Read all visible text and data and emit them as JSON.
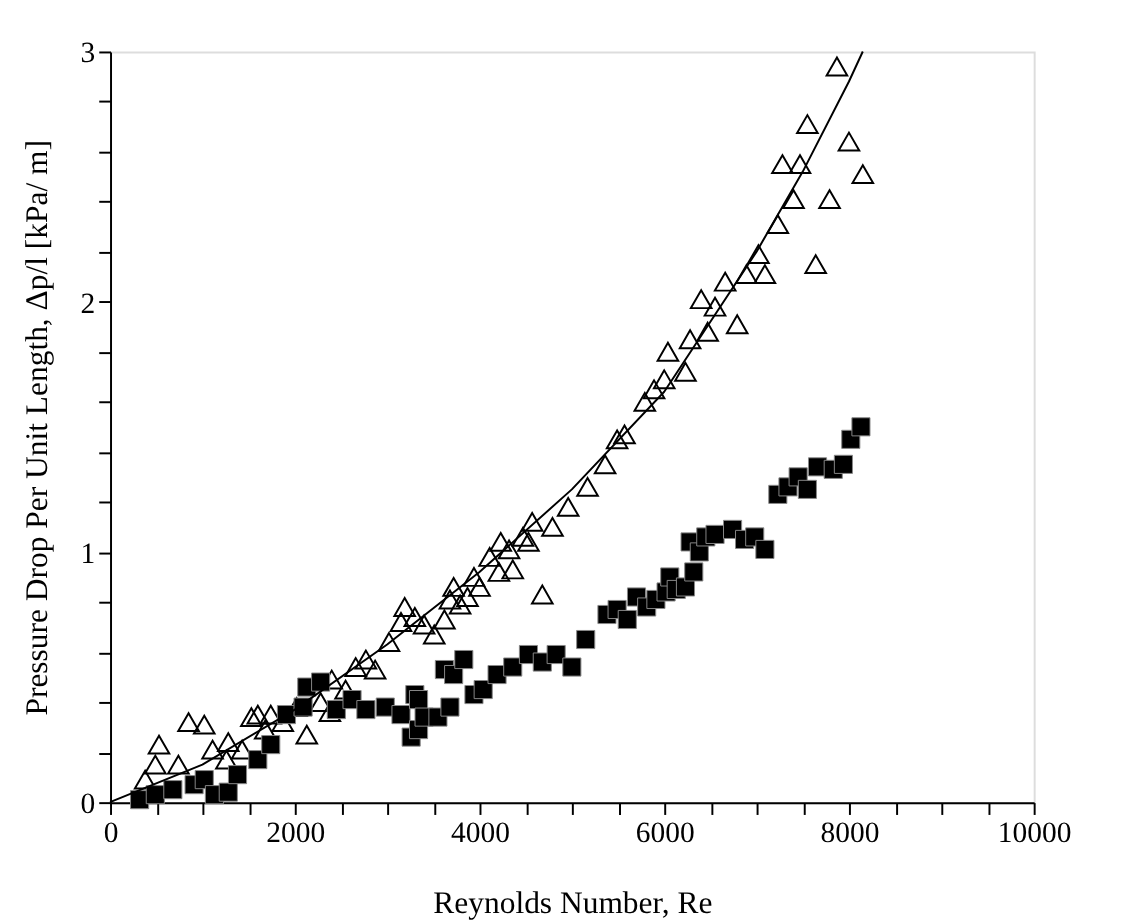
{
  "chart_data": {
    "type": "scatter",
    "xlabel": "Reynolds Number, Re",
    "ylabel": "Pressure Drop Per Unit Length, Δp/l  [kPa/ m]",
    "xlim": [
      0,
      10000
    ],
    "ylim": [
      0,
      3
    ],
    "xticks": [
      0,
      {
        "value": 500,
        "label": null
      },
      {
        "value": 1000,
        "label": null
      },
      {
        "value": 1500,
        "label": null
      },
      2000,
      {
        "value": 2500,
        "label": null
      },
      {
        "value": 3000,
        "label": null
      },
      {
        "value": 3500,
        "label": null
      },
      4000,
      {
        "value": 4500,
        "label": null
      },
      {
        "value": 5000,
        "label": null
      },
      {
        "value": 5500,
        "label": null
      },
      6000,
      {
        "value": 6500,
        "label": null
      },
      {
        "value": 7000,
        "label": null
      },
      {
        "value": 7500,
        "label": null
      },
      8000,
      {
        "value": 8500,
        "label": null
      },
      {
        "value": 9000,
        "label": null
      },
      {
        "value": 9500,
        "label": null
      },
      10000
    ],
    "yticks": [
      0,
      {
        "value": 0.2,
        "label": null
      },
      {
        "value": 0.4,
        "label": null
      },
      {
        "value": 0.6,
        "label": null
      },
      {
        "value": 0.8,
        "label": null
      },
      1,
      {
        "value": 1.2,
        "label": null
      },
      {
        "value": 1.4,
        "label": null
      },
      {
        "value": 1.6,
        "label": null
      },
      {
        "value": 1.8,
        "label": null
      },
      2,
      {
        "value": 2.2,
        "label": null
      },
      {
        "value": 2.4,
        "label": null
      },
      {
        "value": 2.6,
        "label": null
      },
      {
        "value": 2.8,
        "label": null
      },
      3
    ],
    "grid": false,
    "series": [
      {
        "marker": "triangle",
        "color": "#000000",
        "x": [
          380,
          490,
          530,
          740,
          850,
          1020,
          1110,
          1260,
          1280,
          1430,
          1530,
          1600,
          1680,
          1740,
          1870,
          2020,
          2130,
          2280,
          2380,
          2400,
          2550,
          2660,
          2770,
          2870,
          3020,
          3150,
          3190,
          3300,
          3400,
          3510,
          3620,
          3680,
          3720,
          3790,
          3870,
          3940,
          4000,
          4110,
          4210,
          4230,
          4320,
          4360,
          4470,
          4530,
          4570,
          4680,
          4790,
          4960,
          5170,
          5360,
          5490,
          5570,
          5790,
          5890,
          6000,
          6040,
          6230,
          6280,
          6400,
          6470,
          6550,
          6660,
          6790,
          6890,
          7020,
          7090,
          7230,
          7280,
          7400,
          7470,
          7550,
          7640,
          7790,
          7870,
          8000,
          8150
        ],
        "values": [
          0.09,
          0.15,
          0.23,
          0.15,
          0.32,
          0.31,
          0.21,
          0.17,
          0.24,
          0.21,
          0.34,
          0.35,
          0.29,
          0.35,
          0.32,
          0.38,
          0.27,
          0.4,
          0.36,
          0.49,
          0.45,
          0.54,
          0.57,
          0.53,
          0.64,
          0.72,
          0.78,
          0.74,
          0.71,
          0.67,
          0.73,
          0.81,
          0.86,
          0.79,
          0.82,
          0.9,
          0.86,
          0.98,
          0.92,
          1.04,
          1.01,
          0.93,
          1.06,
          1.04,
          1.12,
          0.83,
          1.1,
          1.18,
          1.26,
          1.35,
          1.45,
          1.47,
          1.6,
          1.65,
          1.69,
          1.8,
          1.72,
          1.85,
          2.01,
          1.88,
          1.98,
          2.08,
          1.91,
          2.11,
          2.19,
          2.11,
          2.31,
          2.55,
          2.41,
          2.55,
          2.71,
          2.15,
          2.41,
          2.94,
          2.64,
          2.51
        ]
      },
      {
        "marker": "square",
        "color": "#000000",
        "x": [
          320,
          490,
          680,
          910,
          1020,
          1130,
          1280,
          1380,
          1600,
          1740,
          1910,
          2090,
          2130,
          2280,
          2450,
          2620,
          2770,
          2980,
          3150,
          3260,
          3300,
          3340,
          3340,
          3400,
          3550,
          3620,
          3680,
          3720,
          3830,
          3940,
          4040,
          4190,
          4360,
          4530,
          4680,
          4830,
          5000,
          5150,
          5380,
          5490,
          5600,
          5700,
          5810,
          5910,
          6020,
          6060,
          6130,
          6230,
          6280,
          6320,
          6380,
          6450,
          6550,
          6740,
          6870,
          6980,
          7090,
          7230,
          7340,
          7450,
          7550,
          7660,
          7830,
          7940,
          8020,
          8130
        ],
        "values": [
          0.01,
          0.03,
          0.05,
          0.07,
          0.09,
          0.03,
          0.04,
          0.11,
          0.17,
          0.23,
          0.35,
          0.38,
          0.46,
          0.48,
          0.37,
          0.41,
          0.37,
          0.38,
          0.35,
          0.26,
          0.43,
          0.29,
          0.41,
          0.34,
          0.34,
          0.53,
          0.38,
          0.51,
          0.57,
          0.43,
          0.45,
          0.51,
          0.54,
          0.59,
          0.56,
          0.59,
          0.54,
          0.65,
          0.75,
          0.77,
          0.73,
          0.82,
          0.78,
          0.81,
          0.84,
          0.9,
          0.85,
          0.86,
          1.04,
          0.92,
          1.0,
          1.06,
          1.07,
          1.09,
          1.05,
          1.06,
          1.01,
          1.23,
          1.26,
          1.3,
          1.25,
          1.34,
          1.33,
          1.35,
          1.45,
          1.5
        ]
      },
      {
        "type": "line",
        "marker": "none",
        "line_style": "solid",
        "color": "#000000",
        "x": [
          0,
          1000,
          2000,
          3000,
          4000,
          5000,
          6000,
          7000,
          7500,
          8000,
          8150
        ],
        "values": [
          0,
          0.15,
          0.37,
          0.63,
          0.92,
          1.25,
          1.64,
          2.2,
          2.52,
          2.88,
          3.0
        ]
      }
    ]
  }
}
